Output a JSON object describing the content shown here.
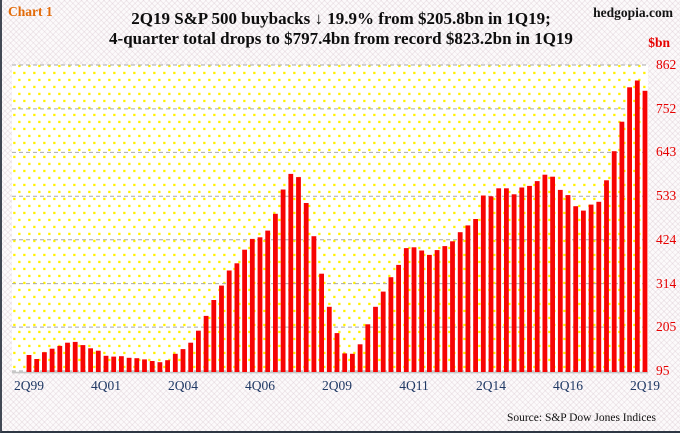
{
  "header": {
    "chart_label": "Chart 1",
    "site": "hedgopia.com"
  },
  "chart_data": {
    "type": "bar",
    "title_line1": "2Q19 S&P 500 buybacks ↓ 19.9% from $205.8bn in 1Q19;",
    "title_line2": "4-quarter total drops to $797.4bn from record $823.2bn in 1Q19",
    "unit_label": "$bn",
    "source": "Source: S&P Dow Jones Indices",
    "y_min": 95,
    "y_max": 862,
    "y_ticks": [
      862,
      752,
      643,
      533,
      424,
      314,
      205,
      95
    ],
    "x_tick_labels": [
      "2Q99",
      "4Q01",
      "2Q04",
      "4Q06",
      "2Q09",
      "4Q11",
      "2Q14",
      "4Q16",
      "2Q19"
    ],
    "x_tick_every": 10,
    "grid": "dashed-horizontal",
    "legend": "none",
    "bar_color": "#f70404",
    "tick_color": "#e60000",
    "xlabel_color": "#1f3864",
    "dot_color": "#fff100",
    "categories": [
      "2Q99",
      "3Q99",
      "4Q99",
      "1Q00",
      "2Q00",
      "3Q00",
      "4Q00",
      "1Q01",
      "2Q01",
      "3Q01",
      "4Q01",
      "1Q02",
      "2Q02",
      "3Q02",
      "4Q02",
      "1Q03",
      "2Q03",
      "3Q03",
      "4Q03",
      "1Q04",
      "2Q04",
      "3Q04",
      "4Q04",
      "1Q05",
      "2Q05",
      "3Q05",
      "4Q05",
      "1Q06",
      "2Q06",
      "3Q06",
      "4Q06",
      "1Q07",
      "2Q07",
      "3Q07",
      "4Q07",
      "1Q08",
      "2Q08",
      "3Q08",
      "4Q08",
      "1Q09",
      "2Q09",
      "3Q09",
      "4Q09",
      "1Q10",
      "2Q10",
      "3Q10",
      "4Q10",
      "1Q11",
      "2Q11",
      "3Q11",
      "4Q11",
      "1Q12",
      "2Q12",
      "3Q12",
      "4Q12",
      "1Q13",
      "2Q13",
      "3Q13",
      "4Q13",
      "1Q14",
      "2Q14",
      "3Q14",
      "4Q14",
      "1Q15",
      "2Q15",
      "3Q15",
      "4Q15",
      "1Q16",
      "2Q16",
      "3Q16",
      "4Q16",
      "1Q17",
      "2Q17",
      "3Q17",
      "4Q17",
      "1Q18",
      "2Q18",
      "3Q18",
      "4Q18",
      "1Q19",
      "2Q19"
    ],
    "values": [
      135,
      125,
      142,
      151,
      158,
      166,
      168,
      160,
      152,
      146,
      133,
      131,
      132,
      128,
      127,
      124,
      120,
      117,
      122,
      138,
      150,
      166,
      196,
      233,
      273,
      309,
      347,
      365,
      399,
      426,
      430,
      447,
      489,
      550,
      589,
      581,
      516,
      433,
      339,
      256,
      190,
      139,
      138,
      162,
      212,
      256,
      294,
      330,
      361,
      403,
      405,
      397,
      386,
      398,
      408,
      420,
      443,
      460,
      476,
      535,
      533,
      553,
      553,
      538,
      555,
      559,
      571,
      587,
      582,
      549,
      536,
      508,
      497,
      512,
      519,
      573,
      646,
      720,
      806,
      823.2,
      797.4
    ]
  }
}
